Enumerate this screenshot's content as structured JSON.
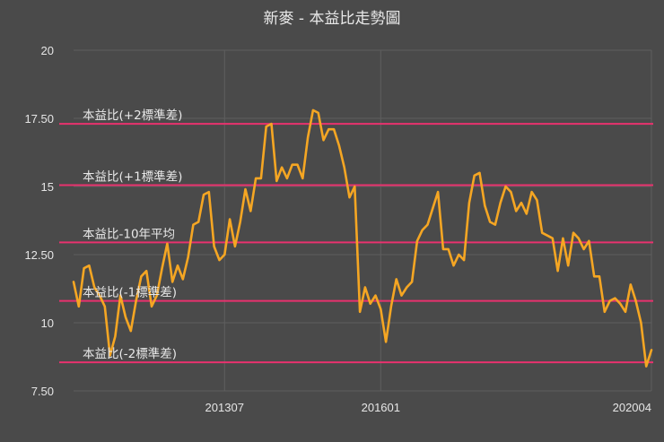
{
  "chart_data": {
    "type": "line",
    "title": "新麥 - 本益比走勢圖",
    "ylim": [
      7.5,
      20
    ],
    "ytick_labels": [
      "7.50",
      "10",
      "12.50",
      "15",
      "17.50",
      "20"
    ],
    "yticks": [
      7.5,
      10,
      12.5,
      15,
      17.5,
      20
    ],
    "xtick_labels": [
      "201307",
      "201601",
      "202004"
    ],
    "xtick_index": [
      29,
      59,
      111
    ],
    "grid": true,
    "colors": {
      "line": "#f5a623",
      "band": "#e8326e"
    },
    "bands": [
      {
        "label": "本益比(+2標準差)",
        "value": 17.3
      },
      {
        "label": "本益比(+1標準差)",
        "value": 15.05
      },
      {
        "label": "本益比-10年平均",
        "value": 12.95
      },
      {
        "label": "本益比(-1標準差)",
        "value": 10.8
      },
      {
        "label": "本益比(-2標準差)",
        "value": 8.55
      }
    ],
    "series": [
      {
        "values": [
          11.5,
          10.6,
          12.0,
          12.1,
          11.3,
          11.0,
          10.6,
          8.8,
          9.5,
          11.0,
          10.2,
          9.7,
          10.8,
          11.7,
          11.9,
          10.6,
          11.0,
          12.0,
          12.9,
          11.5,
          12.1,
          11.6,
          12.4,
          13.6,
          13.7,
          14.7,
          14.8,
          12.8,
          12.3,
          12.5,
          13.8,
          12.8,
          13.7,
          14.9,
          14.1,
          15.3,
          15.3,
          17.2,
          17.3,
          15.2,
          15.7,
          15.3,
          15.8,
          15.8,
          15.3,
          16.8,
          17.8,
          17.7,
          16.7,
          17.1,
          17.1,
          16.5,
          15.7,
          14.6,
          15.0,
          10.4,
          11.3,
          10.7,
          11.0,
          10.5,
          9.3,
          10.6,
          11.6,
          11.0,
          11.3,
          11.5,
          13.0,
          13.4,
          13.6,
          14.2,
          14.8,
          12.7,
          12.7,
          12.1,
          12.5,
          12.3,
          14.4,
          15.4,
          15.5,
          14.3,
          13.7,
          13.6,
          14.4,
          15.0,
          14.8,
          14.1,
          14.4,
          14.0,
          14.8,
          14.5,
          13.3,
          13.2,
          13.1,
          11.9,
          13.1,
          12.1,
          13.3,
          13.1,
          12.7,
          13.0,
          11.7,
          11.7,
          10.4,
          10.8,
          10.9,
          10.7,
          10.4,
          11.4,
          10.8,
          10.0,
          8.4,
          9.0
        ]
      }
    ]
  }
}
